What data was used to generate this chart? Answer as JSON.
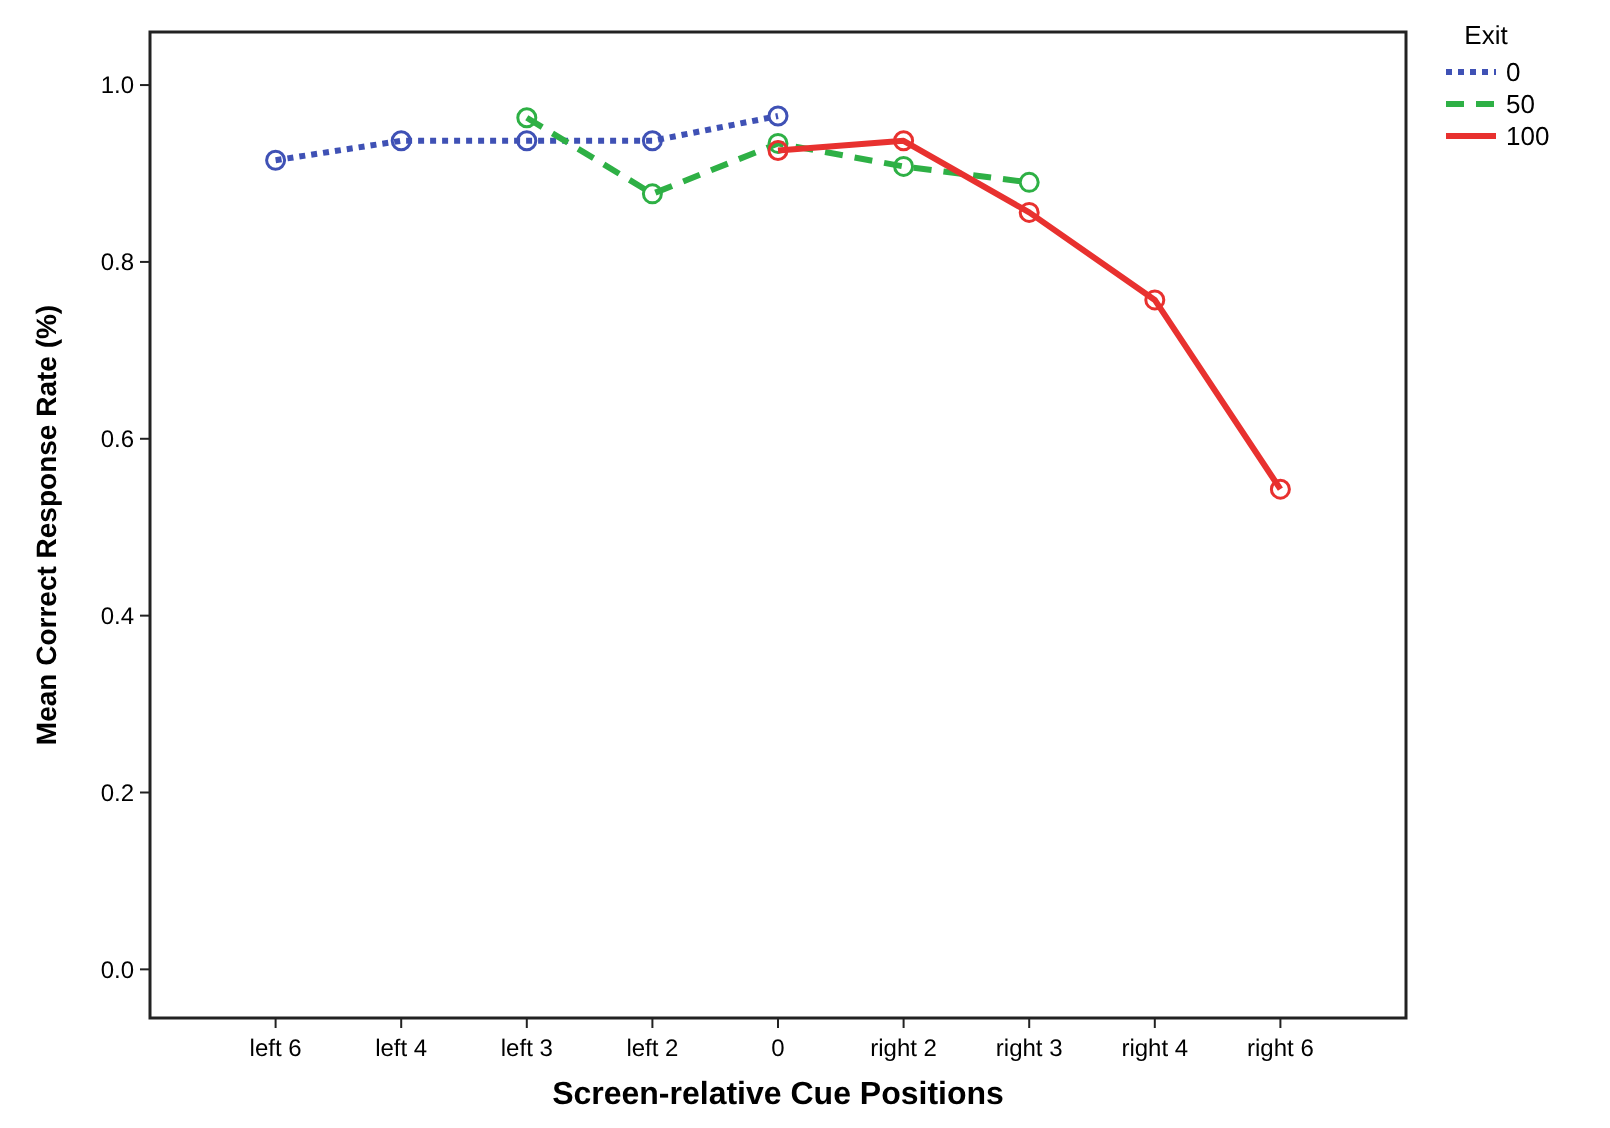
{
  "chart_data": {
    "type": "line",
    "xlabel": "Screen-relative Cue Positions",
    "ylabel": "Mean Correct Response Rate (%)",
    "legend_title": "Exit",
    "legend": "top right",
    "marker": "circle",
    "categories": [
      "left 6",
      "left 4",
      "left 3",
      "left 2",
      "0",
      "right 2",
      "right 3",
      "right 4",
      "right 6"
    ],
    "ylim": [
      -0.055,
      1.06
    ],
    "yticks": [
      {
        "value": 0,
        "label": "0.0"
      },
      {
        "value": 0.2,
        "label": "0.2"
      },
      {
        "value": 0.4,
        "label": "0.4"
      },
      {
        "value": 0.6,
        "label": "0.6"
      },
      {
        "value": 0.8,
        "label": "0.8"
      },
      {
        "value": 1,
        "label": "1.0"
      }
    ],
    "series": [
      {
        "name": "0",
        "color": "#3f51b5",
        "line_style": "dotted",
        "values": [
          0.915,
          0.937,
          0.937,
          0.937,
          0.965,
          null,
          null,
          null,
          null
        ]
      },
      {
        "name": "50",
        "color": "#2eb045",
        "line_style": "dashed",
        "values": [
          null,
          null,
          0.963,
          0.877,
          0.934,
          0.908,
          0.89,
          null,
          null
        ]
      },
      {
        "name": "100",
        "color": "#e8312f",
        "line_style": "solid",
        "values": [
          null,
          null,
          null,
          null,
          0.926,
          0.937,
          0.856,
          0.757,
          0.543
        ]
      }
    ]
  }
}
